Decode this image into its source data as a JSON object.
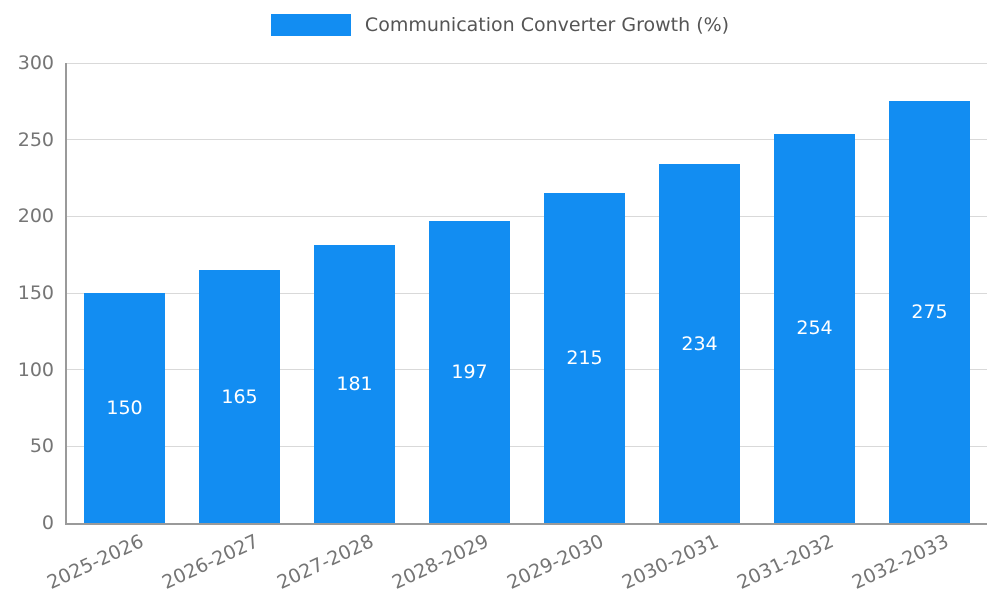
{
  "chart_data": {
    "type": "bar",
    "title": "Communication Converter Growth (%)",
    "categories": [
      "2025-2026",
      "2026-2027",
      "2027-2028",
      "2028-2029",
      "2029-2030",
      "2030-2031",
      "2031-2032",
      "2032-2033"
    ],
    "values": [
      150,
      165,
      181,
      197,
      215,
      234,
      254,
      275
    ],
    "xlabel": "",
    "ylabel": "",
    "ylim": [
      0,
      300
    ],
    "yticks": [
      0,
      50,
      100,
      150,
      200,
      250,
      300
    ],
    "grid": true,
    "legend_position": "top-center",
    "colors": {
      "bar": "#128df2",
      "value_label": "#ffffff",
      "tick_label": "#757575",
      "legend_text": "#555555",
      "gridline": "#d9d9d9",
      "axis_spine": "#9a9a9a",
      "background": "#ffffff"
    }
  }
}
